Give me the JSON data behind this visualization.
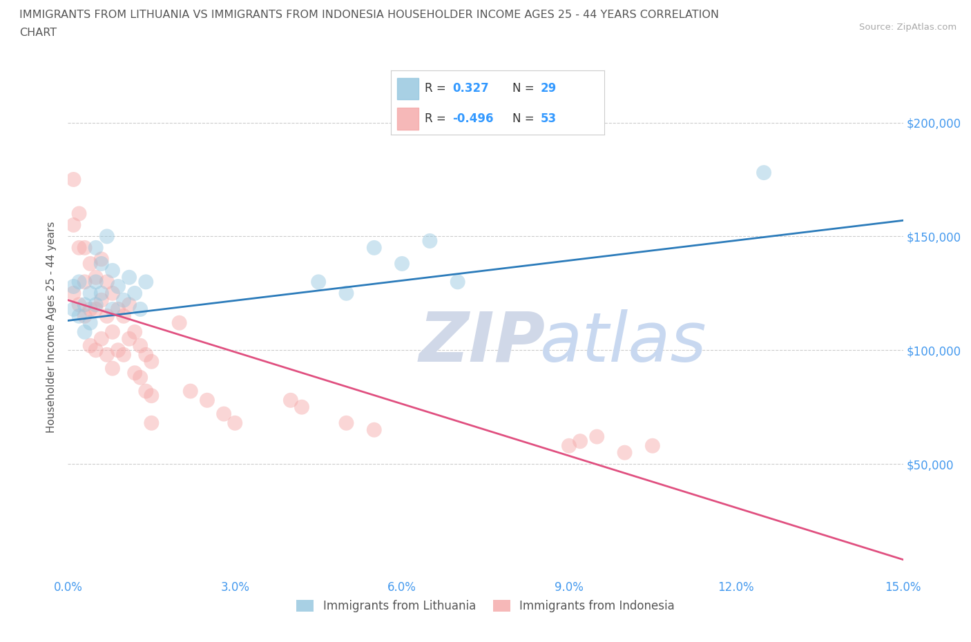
{
  "title_line1": "IMMIGRANTS FROM LITHUANIA VS IMMIGRANTS FROM INDONESIA HOUSEHOLDER INCOME AGES 25 - 44 YEARS CORRELATION",
  "title_line2": "CHART",
  "source": "Source: ZipAtlas.com",
  "ylabel": "Householder Income Ages 25 - 44 years",
  "xlim": [
    0.0,
    0.15
  ],
  "ylim": [
    0,
    220000
  ],
  "yticks": [
    50000,
    100000,
    150000,
    200000
  ],
  "ytick_labels": [
    "$50,000",
    "$100,000",
    "$150,000",
    "$200,000"
  ],
  "xticks": [
    0.0,
    0.03,
    0.06,
    0.09,
    0.12,
    0.15
  ],
  "xtick_labels": [
    "0.0%",
    "3.0%",
    "6.0%",
    "9.0%",
    "12.0%",
    "15.0%"
  ],
  "lithuania_color": "#92c5de",
  "indonesia_color": "#f4a6a6",
  "lithuania_line_color": "#2b7bba",
  "indonesia_line_color": "#e05080",
  "watermark_zip_color": "#d0d8e8",
  "watermark_atlas_color": "#c8d8f0",
  "background_color": "#ffffff",
  "grid_color": "#cccccc",
  "tick_color": "#4499ee",
  "text_color": "#555555",
  "legend_text_color": "#333333",
  "legend_value_color": "#3399ff",
  "lithuania_R": "0.327",
  "lithuania_N": "29",
  "indonesia_R": "-0.496",
  "indonesia_N": "53",
  "lith_line_x0": 0.0,
  "lith_line_y0": 113000,
  "lith_line_x1": 0.15,
  "lith_line_y1": 157000,
  "indo_line_x0": 0.0,
  "indo_line_y0": 122000,
  "indo_line_x1": 0.15,
  "indo_line_y1": 8000,
  "lithuania_scatter_x": [
    0.001,
    0.001,
    0.002,
    0.002,
    0.003,
    0.003,
    0.004,
    0.004,
    0.005,
    0.005,
    0.005,
    0.006,
    0.006,
    0.007,
    0.008,
    0.008,
    0.009,
    0.01,
    0.011,
    0.012,
    0.013,
    0.014,
    0.045,
    0.05,
    0.055,
    0.06,
    0.065,
    0.07,
    0.125
  ],
  "lithuania_scatter_y": [
    118000,
    128000,
    115000,
    130000,
    120000,
    108000,
    125000,
    112000,
    130000,
    120000,
    145000,
    138000,
    125000,
    150000,
    135000,
    118000,
    128000,
    122000,
    132000,
    125000,
    118000,
    130000,
    130000,
    125000,
    145000,
    138000,
    148000,
    130000,
    178000
  ],
  "indonesia_scatter_x": [
    0.001,
    0.001,
    0.001,
    0.002,
    0.002,
    0.002,
    0.003,
    0.003,
    0.003,
    0.004,
    0.004,
    0.004,
    0.005,
    0.005,
    0.005,
    0.006,
    0.006,
    0.006,
    0.007,
    0.007,
    0.007,
    0.008,
    0.008,
    0.008,
    0.009,
    0.009,
    0.01,
    0.01,
    0.011,
    0.011,
    0.012,
    0.012,
    0.013,
    0.013,
    0.014,
    0.014,
    0.015,
    0.015,
    0.015,
    0.02,
    0.022,
    0.025,
    0.028,
    0.03,
    0.04,
    0.042,
    0.05,
    0.055,
    0.09,
    0.092,
    0.095,
    0.1,
    0.105
  ],
  "indonesia_scatter_y": [
    125000,
    155000,
    175000,
    160000,
    145000,
    120000,
    145000,
    130000,
    115000,
    138000,
    118000,
    102000,
    132000,
    118000,
    100000,
    140000,
    122000,
    105000,
    130000,
    115000,
    98000,
    125000,
    108000,
    92000,
    118000,
    100000,
    115000,
    98000,
    120000,
    105000,
    108000,
    90000,
    102000,
    88000,
    98000,
    82000,
    95000,
    80000,
    68000,
    112000,
    82000,
    78000,
    72000,
    68000,
    78000,
    75000,
    68000,
    65000,
    58000,
    60000,
    62000,
    55000,
    58000
  ],
  "marker_size": 250,
  "marker_alpha": 0.45,
  "line_width": 2.0
}
